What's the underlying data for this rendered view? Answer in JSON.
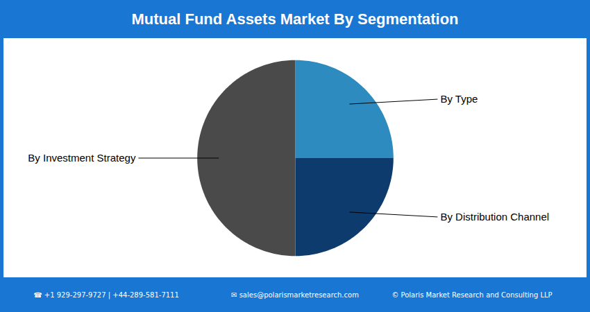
{
  "chart_data": {
    "type": "pie",
    "title": "Mutual Fund Assets Market By Segmentation",
    "categories": [
      "By Type",
      "By Distribution Channel",
      "By Investment Strategy"
    ],
    "values": [
      25,
      25,
      50
    ],
    "colors": [
      "#2E8BC0",
      "#0D3B6E",
      "#4A4A4A"
    ],
    "tick_labels": false,
    "footer": [
      "☎  +1 929-297-9727 | +44-289-581-7111",
      "✉  sales@polarismarketresearch.com",
      "© Polaris Market Research and Consulting LLP"
    ]
  }
}
